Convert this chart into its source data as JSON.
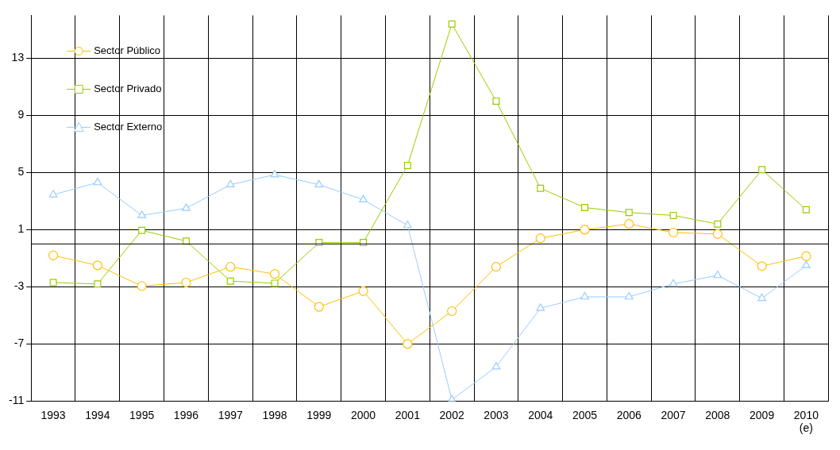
{
  "chart_data": {
    "type": "line",
    "categories": [
      "1993",
      "1994",
      "1995",
      "1996",
      "1997",
      "1998",
      "1999",
      "2000",
      "2001",
      "2002",
      "2003",
      "2004",
      "2005",
      "2006",
      "2007",
      "2008",
      "2009",
      "2010\n(e)"
    ],
    "series": [
      {
        "name": "Sector Público",
        "color": "#ffc000",
        "marker": "circle",
        "values": [
          -0.8,
          -1.5,
          -2.95,
          -2.7,
          -1.6,
          -2.1,
          -4.4,
          -3.3,
          -7.0,
          -4.7,
          -1.6,
          0.4,
          1.0,
          1.4,
          0.8,
          0.7,
          -1.55,
          -0.85
        ]
      },
      {
        "name": "Sector Privado",
        "color": "#99cc00",
        "marker": "square",
        "values": [
          -2.7,
          -2.8,
          0.95,
          0.2,
          -2.6,
          -2.75,
          0.1,
          0.1,
          5.5,
          15.4,
          10.0,
          3.9,
          2.55,
          2.2,
          2.0,
          1.4,
          5.2,
          2.4
        ]
      },
      {
        "name": "Sector Externo",
        "color": "#99ccff",
        "marker": "triangle",
        "values": [
          3.45,
          4.3,
          2.0,
          2.5,
          4.15,
          4.85,
          4.15,
          3.1,
          1.3,
          -10.9,
          -8.6,
          -4.5,
          -3.7,
          -3.7,
          -2.8,
          -2.2,
          -3.8,
          -1.5
        ]
      }
    ],
    "ylim": [
      -11,
      16
    ],
    "yticks": [
      -11,
      -7,
      -3,
      1,
      5,
      9,
      13
    ],
    "grid": true,
    "legend": "top left",
    "line_style": "solid",
    "ref_lines": [
      {
        "axis": "y",
        "value": 0,
        "color": "#000000"
      }
    ]
  }
}
